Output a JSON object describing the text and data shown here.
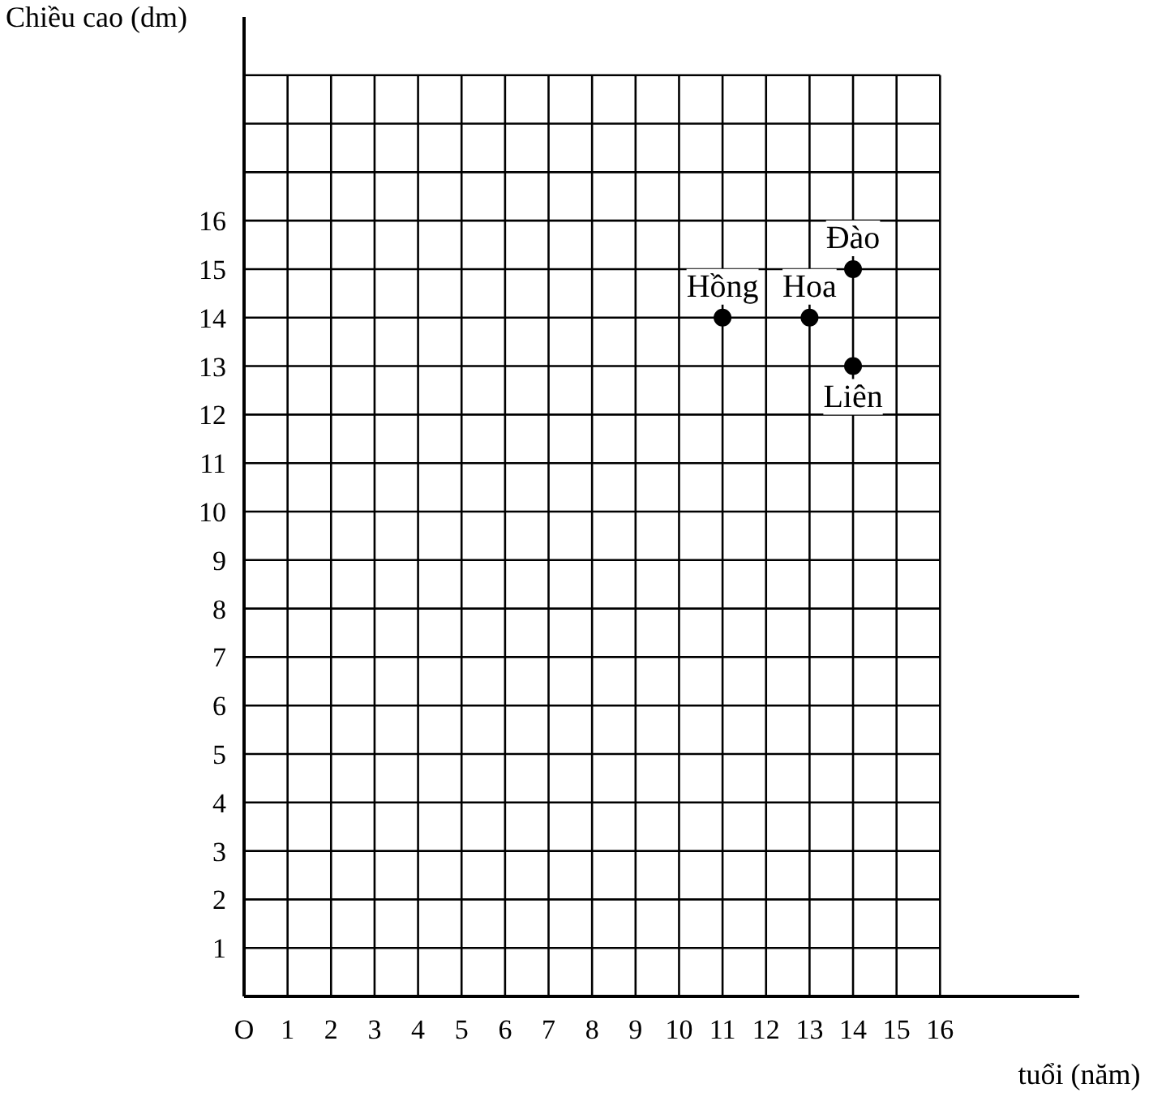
{
  "chart_data": {
    "type": "scatter",
    "xlabel": "tuổi (năm)",
    "ylabel": "Chiều cao (dm)",
    "x": [
      11,
      13,
      14,
      14
    ],
    "values": [
      14,
      14,
      15,
      13
    ],
    "color": "#000000",
    "marker": "circle",
    "annotations": [
      {
        "text": "Hồng",
        "x": 11,
        "y": 14
      },
      {
        "text": "Hoa",
        "x": 13,
        "y": 14
      },
      {
        "text": "Đào",
        "x": 14,
        "y": 15
      },
      {
        "text": "Liên",
        "x": 14,
        "y": 13
      }
    ],
    "xlim": [
      0,
      19.2
    ],
    "ylim": [
      0,
      20.2
    ],
    "xticks": [
      {
        "value": 0,
        "label": "O"
      },
      1,
      2,
      3,
      4,
      5,
      6,
      7,
      8,
      9,
      10,
      11,
      12,
      13,
      14,
      15,
      16
    ],
    "yticks": [
      1,
      2,
      3,
      4,
      5,
      6,
      7,
      8,
      9,
      10,
      11,
      12,
      13,
      14,
      15,
      16,
      {
        "value": 17,
        "label": null
      },
      {
        "value": 18,
        "label": null
      },
      {
        "value": 19,
        "label": null
      }
    ],
    "grid": true
  }
}
